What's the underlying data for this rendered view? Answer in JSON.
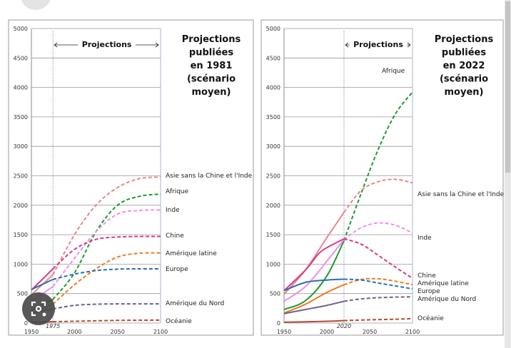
{
  "chart_data": [
    {
      "type": "line",
      "title": "Projections publiées en 1981 (scénario moyen)",
      "title_lines": [
        "Projections",
        "publiées",
        "en 1981",
        "(scénario",
        "moyen)"
      ],
      "projection_label": "Projections",
      "cut_year": 1975,
      "cut_label": "1975",
      "xlim": [
        1950,
        2100
      ],
      "ylim": [
        0,
        5000
      ],
      "xticks": [
        1950,
        2000,
        2050,
        2100
      ],
      "yticks": [
        0,
        500,
        1000,
        1500,
        2000,
        2500,
        3000,
        3500,
        4000,
        4500,
        5000
      ],
      "grid": true,
      "series": [
        {
          "name": "Asie sans la Chine et l'Inde",
          "color": "#e8868a",
          "points": [
            [
              1950,
              480
            ],
            [
              1975,
              820
            ],
            [
              2000,
              1500
            ],
            [
              2025,
              2000
            ],
            [
              2050,
              2300
            ],
            [
              2075,
              2450
            ],
            [
              2100,
              2480
            ]
          ]
        },
        {
          "name": "Afrique",
          "color": "#1e9a2e",
          "points": [
            [
              1950,
              220
            ],
            [
              1975,
              400
            ],
            [
              2000,
              850
            ],
            [
              2025,
              1550
            ],
            [
              2050,
              2000
            ],
            [
              2075,
              2150
            ],
            [
              2100,
              2190
            ]
          ]
        },
        {
          "name": "Inde",
          "color": "#ee8fea",
          "points": [
            [
              1950,
              370
            ],
            [
              1975,
              620
            ],
            [
              2000,
              1100
            ],
            [
              2025,
              1550
            ],
            [
              2050,
              1850
            ],
            [
              2075,
              1910
            ],
            [
              2100,
              1920
            ]
          ]
        },
        {
          "name": "Chine",
          "color": "#d93a8a",
          "points": [
            [
              1950,
              560
            ],
            [
              1975,
              920
            ],
            [
              2000,
              1250
            ],
            [
              2025,
              1420
            ],
            [
              2050,
              1460
            ],
            [
              2075,
              1470
            ],
            [
              2100,
              1470
            ]
          ]
        },
        {
          "name": "Amérique latine",
          "color": "#ec7d23",
          "points": [
            [
              1950,
              160
            ],
            [
              1975,
              320
            ],
            [
              2000,
              650
            ],
            [
              2025,
              920
            ],
            [
              2050,
              1120
            ],
            [
              2075,
              1185
            ],
            [
              2100,
              1190
            ]
          ]
        },
        {
          "name": "Europe",
          "color": "#2a6fb0",
          "points": [
            [
              1950,
              570
            ],
            [
              1975,
              740
            ],
            [
              2000,
              830
            ],
            [
              2025,
              890
            ],
            [
              2050,
              915
            ],
            [
              2075,
              920
            ],
            [
              2100,
              920
            ]
          ]
        },
        {
          "name": "Amérique du Nord",
          "color": "#6a6390",
          "points": [
            [
              1950,
              170
            ],
            [
              1975,
              240
            ],
            [
              2000,
              300
            ],
            [
              2025,
              320
            ],
            [
              2050,
              325
            ],
            [
              2075,
              325
            ],
            [
              2100,
              325
            ]
          ]
        },
        {
          "name": "Océanie",
          "color": "#b84a32",
          "points": [
            [
              1950,
              12
            ],
            [
              1975,
              22
            ],
            [
              2000,
              30
            ],
            [
              2025,
              38
            ],
            [
              2050,
              45
            ],
            [
              2075,
              48
            ],
            [
              2100,
              50
            ]
          ]
        }
      ]
    },
    {
      "type": "line",
      "title": "Projections publiées en 2022 (scénario moyen)",
      "title_lines": [
        "Projections",
        "publiées",
        "en 2022",
        "(scénario",
        "moyen)"
      ],
      "projection_label": "Projections",
      "cut_year": 2020,
      "cut_label": "2020",
      "xlim": [
        1950,
        2100
      ],
      "ylim": [
        0,
        5000
      ],
      "xticks": [
        1950,
        2000,
        2050,
        2100
      ],
      "yticks": [
        0,
        500,
        1000,
        1500,
        2000,
        2500,
        3000,
        3500,
        4000,
        4500,
        5000
      ],
      "grid": true,
      "series": [
        {
          "name": "Afrique",
          "color": "#1e9a2e",
          "points": [
            [
              1950,
              230
            ],
            [
              1975,
              380
            ],
            [
              2000,
              800
            ],
            [
              2020,
              1400
            ],
            [
              2040,
              2200
            ],
            [
              2060,
              2950
            ],
            [
              2080,
              3550
            ],
            [
              2100,
              3920
            ]
          ]
        },
        {
          "name": "Asie sans la Chine et l'Inde",
          "color": "#e8868a",
          "points": [
            [
              1950,
              490
            ],
            [
              1975,
              900
            ],
            [
              2000,
              1450
            ],
            [
              2020,
              1880
            ],
            [
              2040,
              2250
            ],
            [
              2060,
              2400
            ],
            [
              2080,
              2440
            ],
            [
              2100,
              2380
            ]
          ]
        },
        {
          "name": "Inde",
          "color": "#ee8fea",
          "points": [
            [
              1950,
              370
            ],
            [
              1975,
              620
            ],
            [
              2000,
              1050
            ],
            [
              2020,
              1420
            ],
            [
              2040,
              1620
            ],
            [
              2060,
              1700
            ],
            [
              2080,
              1660
            ],
            [
              2100,
              1530
            ]
          ]
        },
        {
          "name": "Chine",
          "color": "#d93a8a",
          "points": [
            [
              1950,
              550
            ],
            [
              1975,
              900
            ],
            [
              1990,
              1170
            ],
            [
              2000,
              1280
            ],
            [
              2020,
              1430
            ],
            [
              2040,
              1340
            ],
            [
              2060,
              1150
            ],
            [
              2080,
              950
            ],
            [
              2100,
              760
            ]
          ]
        },
        {
          "name": "Amérique latine",
          "color": "#ec7d23",
          "points": [
            [
              1950,
              170
            ],
            [
              1975,
              320
            ],
            [
              2000,
              520
            ],
            [
              2020,
              650
            ],
            [
              2040,
              740
            ],
            [
              2060,
              750
            ],
            [
              2080,
              710
            ],
            [
              2100,
              650
            ]
          ]
        },
        {
          "name": "Europe",
          "color": "#2a6fb0",
          "points": [
            [
              1950,
              550
            ],
            [
              1975,
              690
            ],
            [
              2000,
              730
            ],
            [
              2020,
              745
            ],
            [
              2040,
              730
            ],
            [
              2060,
              680
            ],
            [
              2080,
              630
            ],
            [
              2100,
              580
            ]
          ]
        },
        {
          "name": "Amérique du Nord",
          "color": "#6a6390",
          "points": [
            [
              1950,
              160
            ],
            [
              1975,
              230
            ],
            [
              2000,
              300
            ],
            [
              2020,
              370
            ],
            [
              2040,
              410
            ],
            [
              2060,
              430
            ],
            [
              2080,
              440
            ],
            [
              2100,
              445
            ]
          ]
        },
        {
          "name": "Océanie",
          "color": "#b84a32",
          "points": [
            [
              1950,
              13
            ],
            [
              2000,
              30
            ],
            [
              2020,
              42
            ],
            [
              2050,
              55
            ],
            [
              2080,
              65
            ],
            [
              2100,
              75
            ]
          ]
        }
      ]
    }
  ]
}
